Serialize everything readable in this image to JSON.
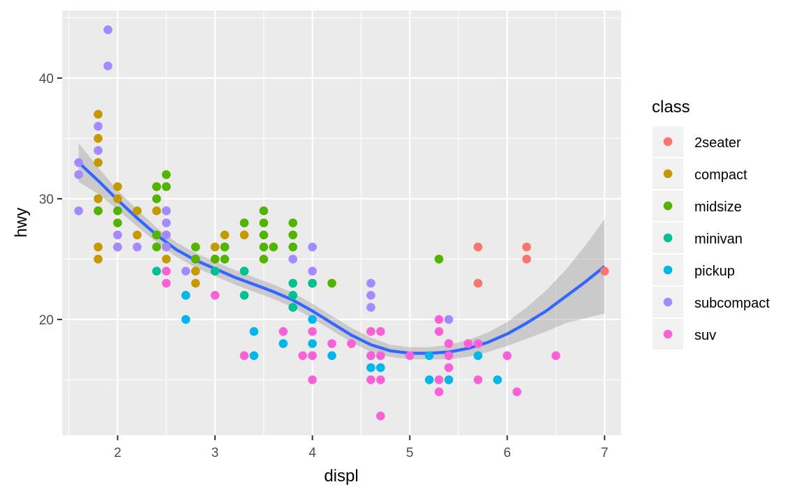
{
  "chart_data": {
    "type": "scatter",
    "title": "",
    "xlabel": "displ",
    "ylabel": "hwy",
    "xlim": [
      1.43,
      7.17
    ],
    "ylim": [
      10.4,
      45.6
    ],
    "x_ticks": [
      2,
      3,
      4,
      5,
      6,
      7
    ],
    "y_ticks": [
      20,
      30,
      40
    ],
    "grid": true,
    "legend": {
      "title": "class",
      "position": "right"
    },
    "colors": {
      "2seater": "#f8766d",
      "compact": "#c49a00",
      "midsize": "#53b400",
      "minivan": "#00c094",
      "pickup": "#00b6eb",
      "subcompact": "#a58aff",
      "suv": "#fb61d7"
    },
    "series": [
      {
        "name": "2seater",
        "points": [
          [
            5.7,
            26
          ],
          [
            5.7,
            23
          ],
          [
            6.2,
            26
          ],
          [
            6.2,
            25
          ],
          [
            7.0,
            24
          ]
        ]
      },
      {
        "name": "compact",
        "points": [
          [
            1.8,
            37
          ],
          [
            1.8,
            35
          ],
          [
            1.8,
            33
          ],
          [
            1.8,
            30
          ],
          [
            1.8,
            29
          ],
          [
            1.8,
            26
          ],
          [
            1.8,
            25
          ],
          [
            2.0,
            31
          ],
          [
            2.0,
            30
          ],
          [
            2.0,
            29
          ],
          [
            2.2,
            29
          ],
          [
            2.2,
            27
          ],
          [
            2.4,
            31
          ],
          [
            2.4,
            29
          ],
          [
            2.4,
            27
          ],
          [
            2.5,
            27
          ],
          [
            2.5,
            26
          ],
          [
            2.5,
            25
          ],
          [
            2.8,
            26
          ],
          [
            2.8,
            25
          ],
          [
            2.8,
            24
          ],
          [
            2.8,
            23
          ],
          [
            3.0,
            26
          ],
          [
            3.0,
            25
          ],
          [
            3.1,
            27
          ],
          [
            3.1,
            26
          ],
          [
            3.3,
            27
          ]
        ]
      },
      {
        "name": "midsize",
        "points": [
          [
            1.8,
            29
          ],
          [
            2.0,
            29
          ],
          [
            2.0,
            28
          ],
          [
            2.0,
            26
          ],
          [
            2.4,
            31
          ],
          [
            2.4,
            30
          ],
          [
            2.4,
            27
          ],
          [
            2.4,
            26
          ],
          [
            2.5,
            32
          ],
          [
            2.5,
            31
          ],
          [
            2.5,
            29
          ],
          [
            2.8,
            26
          ],
          [
            2.8,
            25
          ],
          [
            3.0,
            25
          ],
          [
            3.1,
            26
          ],
          [
            3.1,
            25
          ],
          [
            3.3,
            28
          ],
          [
            3.3,
            24
          ],
          [
            3.5,
            29
          ],
          [
            3.5,
            28
          ],
          [
            3.5,
            27
          ],
          [
            3.5,
            26
          ],
          [
            3.5,
            25
          ],
          [
            3.6,
            26
          ],
          [
            3.8,
            28
          ],
          [
            3.8,
            27
          ],
          [
            3.8,
            26
          ],
          [
            3.8,
            22
          ],
          [
            4.0,
            23
          ],
          [
            4.2,
            23
          ],
          [
            5.3,
            25
          ]
        ]
      },
      {
        "name": "minivan",
        "points": [
          [
            2.4,
            24
          ],
          [
            3.0,
            24
          ],
          [
            3.3,
            24
          ],
          [
            3.3,
            22
          ],
          [
            3.8,
            23
          ],
          [
            3.8,
            22
          ],
          [
            3.8,
            21
          ],
          [
            4.0,
            23
          ]
        ]
      },
      {
        "name": "pickup",
        "points": [
          [
            2.7,
            22
          ],
          [
            2.7,
            20
          ],
          [
            3.4,
            19
          ],
          [
            3.4,
            17
          ],
          [
            3.7,
            18
          ],
          [
            4.0,
            20
          ],
          [
            4.0,
            18
          ],
          [
            4.0,
            17
          ],
          [
            4.2,
            17
          ],
          [
            4.6,
            17
          ],
          [
            4.6,
            16
          ],
          [
            4.7,
            17
          ],
          [
            4.7,
            16
          ],
          [
            5.2,
            17
          ],
          [
            5.2,
            15
          ],
          [
            5.4,
            15
          ],
          [
            5.7,
            17
          ],
          [
            5.9,
            15
          ]
        ]
      },
      {
        "name": "subcompact",
        "points": [
          [
            1.6,
            33
          ],
          [
            1.6,
            32
          ],
          [
            1.6,
            29
          ],
          [
            1.8,
            36
          ],
          [
            1.8,
            34
          ],
          [
            1.9,
            44
          ],
          [
            1.9,
            41
          ],
          [
            2.0,
            27
          ],
          [
            2.0,
            26
          ],
          [
            2.2,
            26
          ],
          [
            2.5,
            29
          ],
          [
            2.5,
            28
          ],
          [
            2.5,
            27
          ],
          [
            2.5,
            26
          ],
          [
            2.7,
            24
          ],
          [
            3.8,
            25
          ],
          [
            4.0,
            26
          ],
          [
            4.0,
            24
          ],
          [
            4.6,
            23
          ],
          [
            4.6,
            22
          ],
          [
            4.6,
            21
          ],
          [
            5.4,
            20
          ]
        ]
      },
      {
        "name": "suv",
        "points": [
          [
            2.5,
            24
          ],
          [
            2.5,
            23
          ],
          [
            3.0,
            22
          ],
          [
            3.3,
            17
          ],
          [
            3.7,
            19
          ],
          [
            3.9,
            17
          ],
          [
            4.0,
            19
          ],
          [
            4.0,
            17
          ],
          [
            4.0,
            15
          ],
          [
            4.2,
            18
          ],
          [
            4.4,
            18
          ],
          [
            4.6,
            19
          ],
          [
            4.6,
            17
          ],
          [
            4.6,
            15
          ],
          [
            4.7,
            19
          ],
          [
            4.7,
            17
          ],
          [
            4.7,
            15
          ],
          [
            4.7,
            12
          ],
          [
            5.0,
            17
          ],
          [
            5.3,
            20
          ],
          [
            5.3,
            19
          ],
          [
            5.3,
            15
          ],
          [
            5.3,
            14
          ],
          [
            5.4,
            18
          ],
          [
            5.4,
            17
          ],
          [
            5.4,
            16
          ],
          [
            5.6,
            18
          ],
          [
            5.7,
            18
          ],
          [
            5.7,
            15
          ],
          [
            6.0,
            17
          ],
          [
            6.1,
            14
          ],
          [
            6.5,
            17
          ]
        ]
      }
    ],
    "smooth": {
      "method": "loess",
      "color": "#3366ff",
      "x": [
        1.6,
        1.8,
        2.0,
        2.2,
        2.4,
        2.6,
        2.8,
        3.0,
        3.2,
        3.4,
        3.6,
        3.8,
        4.0,
        4.2,
        4.4,
        4.6,
        4.8,
        5.0,
        5.2,
        5.4,
        5.6,
        5.8,
        6.0,
        6.2,
        6.4,
        6.6,
        6.8,
        7.0
      ],
      "y": [
        33.0,
        31.5,
        29.9,
        28.4,
        27.0,
        25.8,
        24.9,
        24.2,
        23.5,
        22.9,
        22.3,
        21.6,
        20.7,
        19.7,
        18.7,
        17.9,
        17.4,
        17.2,
        17.2,
        17.3,
        17.6,
        18.1,
        18.8,
        19.7,
        20.7,
        21.9,
        23.1,
        24.4
      ],
      "upper": [
        34.6,
        32.6,
        30.7,
        29.1,
        27.6,
        26.4,
        25.5,
        24.8,
        24.1,
        23.5,
        22.9,
        22.2,
        21.3,
        20.3,
        19.3,
        18.5,
        17.9,
        17.7,
        17.7,
        17.9,
        18.3,
        18.9,
        19.8,
        21.0,
        22.4,
        24.1,
        26.1,
        28.3
      ],
      "lower": [
        31.4,
        30.4,
        29.1,
        27.7,
        26.4,
        25.2,
        24.3,
        23.6,
        22.9,
        22.3,
        21.7,
        21.0,
        20.1,
        19.1,
        18.1,
        17.3,
        16.9,
        16.7,
        16.7,
        16.7,
        16.9,
        17.3,
        17.8,
        18.4,
        19.0,
        19.7,
        20.1,
        20.5
      ]
    }
  }
}
